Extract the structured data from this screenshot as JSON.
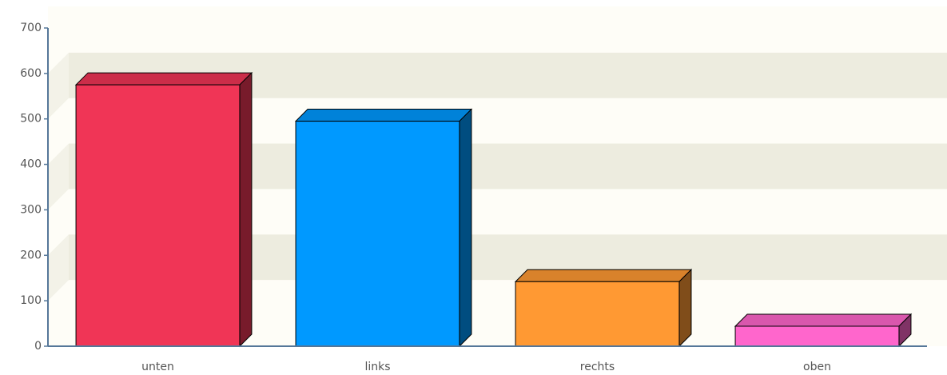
{
  "chart_data": {
    "type": "bar3d",
    "categories": [
      "unten",
      "links",
      "rechts",
      "oben"
    ],
    "values": [
      575,
      495,
      142,
      44
    ],
    "colors": [
      "#f03556",
      "#0099ff",
      "#ff9933",
      "#ff66cc"
    ],
    "ylim": [
      0,
      700
    ],
    "yticks": [
      0,
      100,
      200,
      300,
      400,
      500,
      600,
      700
    ],
    "grid": true
  }
}
